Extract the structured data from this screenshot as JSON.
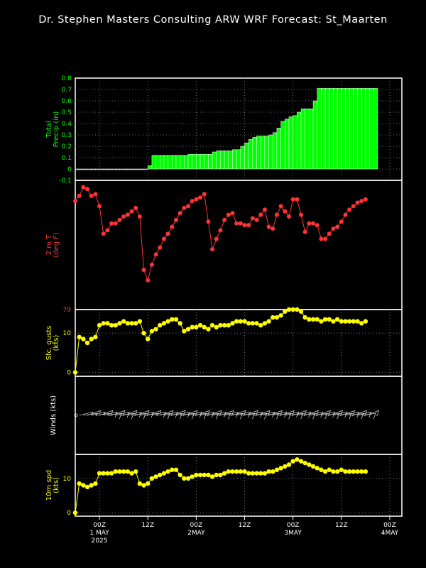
{
  "title": "Dr. Stephen Masters Consulting  ARW WRF Forecast: St_Maarten",
  "colors": {
    "precip": "#00ff00",
    "temp": "#ff3333",
    "gusts": "#ffff00",
    "wind": "#ffffff",
    "spd": "#ffff00",
    "frame": "#ffffff"
  },
  "x_axis": {
    "ticks": [
      {
        "label": "00Z",
        "sub": "1 MAY",
        "sub2": "2025",
        "t": 6
      },
      {
        "label": "12Z",
        "sub": "",
        "sub2": "",
        "t": 18
      },
      {
        "label": "00Z",
        "sub": "2MAY",
        "sub2": "",
        "t": 30
      },
      {
        "label": "12Z",
        "sub": "",
        "sub2": "",
        "t": 42
      },
      {
        "label": "00Z",
        "sub": "3MAY",
        "sub2": "",
        "t": 54
      },
      {
        "label": "12Z",
        "sub": "",
        "sub2": "",
        "t": 66
      },
      {
        "label": "00Z",
        "sub": "4MAY",
        "sub2": "",
        "t": 78
      }
    ],
    "range_hours": [
      0,
      81
    ]
  },
  "chart_data": [
    {
      "type": "bar",
      "panel": "precip",
      "ylabel": "Total Precip (in)",
      "ylim": [
        -0.1,
        0.8
      ],
      "yticks": [
        "0.8",
        "0.7",
        "0.6",
        "0.5",
        "0.4",
        "0.3",
        "0.2",
        "0.1",
        "0",
        "-0.1"
      ],
      "start_hour": 0,
      "step_hours": 1,
      "values": [
        0,
        0,
        0,
        0,
        0,
        0,
        0,
        0,
        0,
        0,
        0,
        0,
        0,
        0,
        0,
        0,
        0,
        0,
        0.03,
        0.12,
        0.12,
        0.12,
        0.12,
        0.12,
        0.12,
        0.12,
        0.12,
        0.12,
        0.13,
        0.13,
        0.13,
        0.13,
        0.13,
        0.13,
        0.15,
        0.16,
        0.16,
        0.16,
        0.16,
        0.17,
        0.17,
        0.2,
        0.23,
        0.26,
        0.28,
        0.29,
        0.29,
        0.29,
        0.3,
        0.32,
        0.36,
        0.42,
        0.44,
        0.46,
        0.47,
        0.5,
        0.53,
        0.53,
        0.53,
        0.6,
        0.71,
        0.71,
        0.71,
        0.71,
        0.71,
        0.71,
        0.71,
        0.71,
        0.71,
        0.71,
        0.71,
        0.71,
        0.71,
        0.71,
        0.71
      ]
    },
    {
      "type": "line",
      "panel": "temp",
      "ylabel": "2 m T (deg F)",
      "ylim": [
        79,
        86.5
      ],
      "yticks": [
        "79"
      ],
      "start_hour": 0,
      "step_hours": 1,
      "values": [
        85.3,
        85.6,
        86.1,
        86.0,
        85.6,
        85.7,
        85.0,
        83.4,
        83.6,
        84.0,
        84.0,
        84.2,
        84.4,
        84.5,
        84.7,
        84.9,
        84.4,
        81.3,
        80.7,
        81.6,
        82.2,
        82.6,
        83.1,
        83.4,
        83.8,
        84.2,
        84.6,
        84.9,
        85.0,
        85.3,
        85.4,
        85.5,
        85.7,
        84.1,
        82.5,
        83.1,
        83.6,
        84.2,
        84.5,
        84.6,
        84.0,
        84.0,
        83.9,
        83.9,
        84.3,
        84.2,
        84.5,
        84.8,
        83.8,
        83.7,
        84.5,
        85.0,
        84.7,
        84.4,
        85.4,
        85.4,
        84.5,
        83.5,
        84.0,
        84.0,
        83.9,
        83.1,
        83.1,
        83.4,
        83.7,
        83.8,
        84.1,
        84.5,
        84.8,
        85.0,
        85.2,
        85.3,
        85.4
      ]
    },
    {
      "type": "line",
      "panel": "gusts",
      "ylabel": "Sfc. gusts (kts)",
      "ylim": [
        -1,
        16
      ],
      "yticks": [
        "10",
        "0"
      ],
      "start_hour": 0,
      "step_hours": 1,
      "values": [
        0,
        9,
        8.5,
        7.5,
        8.5,
        9,
        12,
        12.5,
        12.5,
        12,
        12,
        12.5,
        13,
        12.5,
        12.5,
        12.5,
        13,
        10,
        8.5,
        10.5,
        11,
        12,
        12.5,
        13,
        13.5,
        13.5,
        12.5,
        10.5,
        11,
        11.5,
        11.5,
        12,
        11.5,
        11,
        12,
        11.5,
        12,
        12,
        12,
        12.5,
        13,
        13,
        13,
        12.5,
        12.5,
        12.5,
        12,
        12.5,
        13,
        14,
        14,
        14.5,
        15.5,
        16,
        16,
        16,
        15.5,
        14,
        13.5,
        13.5,
        13.5,
        13,
        13.5,
        13.5,
        13,
        13.5,
        13,
        13,
        13,
        13,
        13,
        12.5,
        13
      ]
    },
    {
      "type": "line",
      "panel": "winds",
      "ylabel": "Winds (kts)",
      "ylim": [
        0,
        1
      ],
      "yticks": [],
      "start_hour": 0,
      "step_hours": 1,
      "values": [
        0,
        8,
        8,
        8,
        8,
        9,
        11,
        12,
        12,
        12,
        12,
        12,
        12,
        12,
        12,
        12,
        12,
        9,
        8,
        10,
        11,
        11,
        12,
        12,
        12,
        12,
        12,
        10,
        11,
        11,
        11,
        11,
        11,
        11,
        11,
        11,
        11,
        12,
        12,
        12,
        12,
        12,
        12,
        12,
        12,
        12,
        12,
        12,
        12,
        13,
        13,
        14,
        14,
        14,
        14,
        14,
        14,
        13,
        12,
        12,
        12,
        12,
        12,
        12,
        12,
        12,
        12,
        12,
        12,
        12,
        12,
        12,
        12
      ]
    },
    {
      "type": "line",
      "panel": "spd",
      "ylabel": "10m spd (kts)",
      "ylim": [
        -1,
        17
      ],
      "yticks": [
        "10",
        "0"
      ],
      "start_hour": 0,
      "step_hours": 1,
      "values": [
        0,
        8.5,
        8,
        7.5,
        8,
        8.5,
        11.5,
        11.5,
        11.5,
        11.5,
        12,
        12,
        12,
        12,
        11.5,
        12,
        8.5,
        8,
        8.5,
        10,
        10.5,
        11,
        11.5,
        12,
        12.5,
        12.5,
        11,
        10,
        10,
        10.5,
        11,
        11,
        11,
        11,
        10.5,
        11,
        11,
        11.5,
        12,
        12,
        12,
        12,
        12,
        11.5,
        11.5,
        11.5,
        11.5,
        11.5,
        12,
        12,
        12.5,
        13,
        13.5,
        14,
        15,
        15.5,
        15,
        14.5,
        14,
        13.5,
        13,
        12.5,
        12,
        12.5,
        12,
        12,
        12.5,
        12,
        12,
        12,
        12,
        12,
        12
      ]
    }
  ]
}
